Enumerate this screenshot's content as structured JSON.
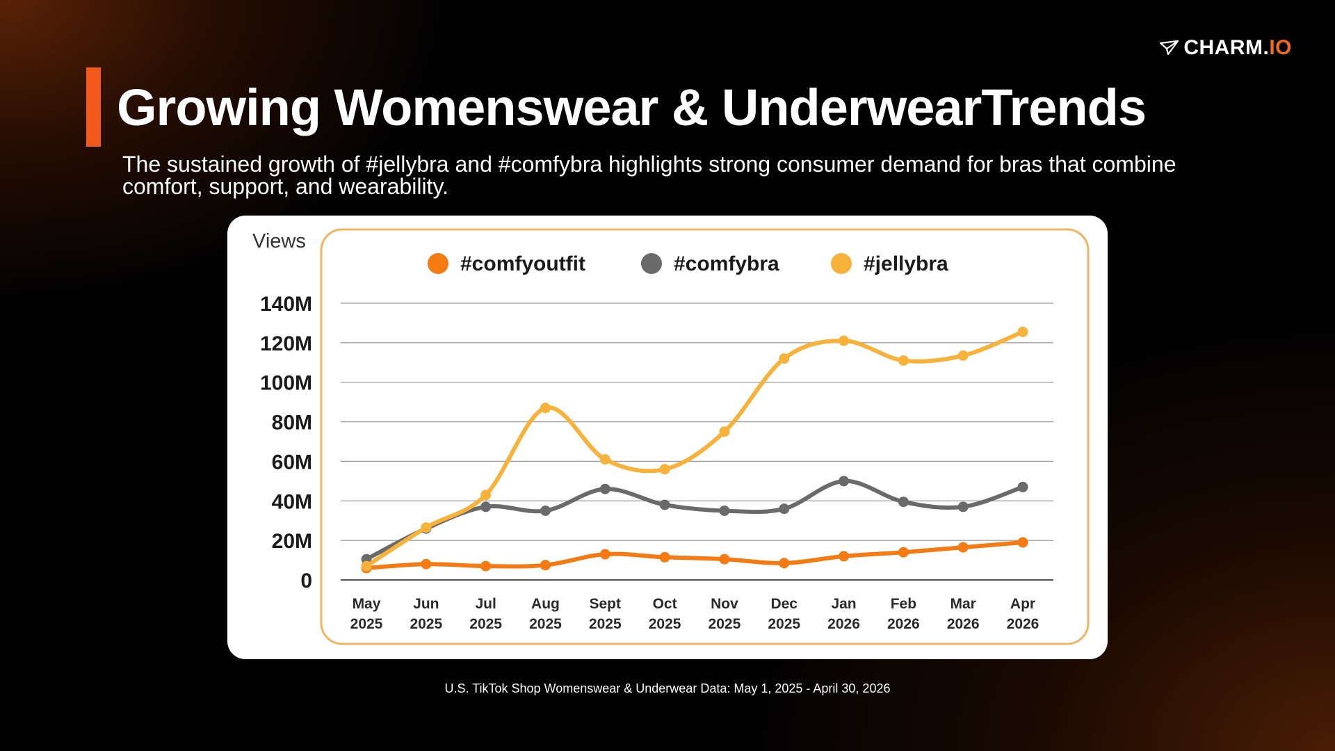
{
  "brand": {
    "name_main": "CHARM.",
    "name_suffix": "IO",
    "accent": "#f26a1b"
  },
  "header": {
    "title": "Growing Womenswear & UnderwearTrends",
    "subtitle": "The sustained growth of #jellybra and #comfybra highlights strong consumer demand for bras that combine comfort, support, and wearability.",
    "accent_bar_color": "#f2591b"
  },
  "footnote": "U.S. TikTok Shop Womenswear & Underwear Data: May 1, 2025 - April 30, 2026",
  "chart_data": {
    "type": "line",
    "ylabel": "Views",
    "ylim": [
      0,
      140
    ],
    "y_ticks": [
      0,
      20,
      40,
      60,
      80,
      100,
      120,
      140
    ],
    "y_tick_labels": [
      "0",
      "20M",
      "40M",
      "60M",
      "80M",
      "100M",
      "120M",
      "140M"
    ],
    "categories": [
      [
        "May",
        "2025"
      ],
      [
        "Jun",
        "2025"
      ],
      [
        "Jul",
        "2025"
      ],
      [
        "Aug",
        "2025"
      ],
      [
        "Sept",
        "2025"
      ],
      [
        "Oct",
        "2025"
      ],
      [
        "Nov",
        "2025"
      ],
      [
        "Dec",
        "2025"
      ],
      [
        "Jan",
        "2026"
      ],
      [
        "Feb",
        "2026"
      ],
      [
        "Mar",
        "2026"
      ],
      [
        "Apr",
        "2026"
      ]
    ],
    "legend_position": "top",
    "grid": true,
    "series": [
      {
        "name": "#comfyoutfit",
        "color": "#f47a14",
        "values": [
          6,
          8,
          7,
          7.5,
          13,
          11.5,
          10.5,
          8.5,
          12,
          14,
          16.5,
          19
        ]
      },
      {
        "name": "#comfybra",
        "color": "#6a6a6a",
        "values": [
          10.5,
          26,
          37,
          35,
          46,
          38,
          35,
          36,
          50,
          39.5,
          37,
          47
        ]
      },
      {
        "name": "#jellybra",
        "color": "#f7b23b",
        "values": [
          7,
          26.5,
          43,
          87,
          61,
          56,
          75,
          112,
          121,
          111,
          113.5,
          125.5
        ]
      }
    ]
  }
}
